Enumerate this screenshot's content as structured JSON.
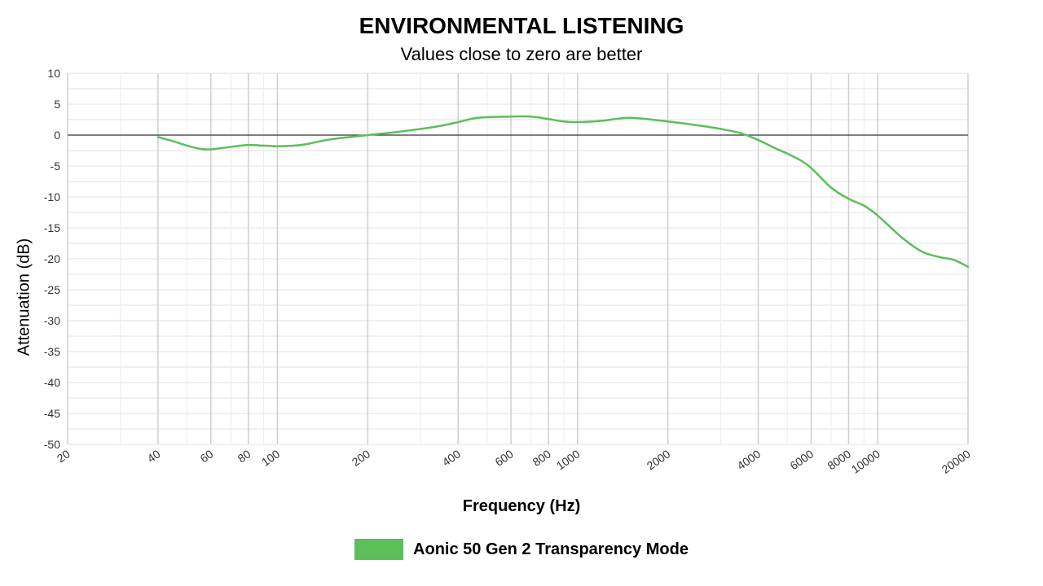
{
  "chart_data": {
    "type": "line",
    "title": "ENVIRONMENTAL LISTENING",
    "subtitle": "Values close to zero are better",
    "xlabel": "Frequency (Hz)",
    "ylabel": "Attenuation (dB)",
    "xscale": "log",
    "xlim": [
      20,
      20000
    ],
    "ylim": [
      -50,
      10
    ],
    "xticks": [
      20,
      40,
      60,
      80,
      100,
      200,
      400,
      600,
      800,
      1000,
      2000,
      4000,
      6000,
      8000,
      10000,
      20000
    ],
    "yticks": [
      10,
      5,
      0,
      -5,
      -10,
      -15,
      -20,
      -25,
      -30,
      -35,
      -40,
      -45,
      -50
    ],
    "grid": true,
    "zero_line": true,
    "legend_position": "bottom",
    "series": [
      {
        "name": "Aonic 50 Gen 2 Transparency Mode",
        "color": "#5cbf5a",
        "x": [
          40,
          45,
          50,
          55,
          60,
          70,
          80,
          90,
          100,
          120,
          150,
          200,
          250,
          300,
          350,
          400,
          450,
          500,
          600,
          700,
          800,
          900,
          1000,
          1200,
          1500,
          2000,
          2500,
          3000,
          3500,
          4000,
          4500,
          5000,
          5500,
          6000,
          7000,
          8000,
          9000,
          10000,
          12000,
          14000,
          16000,
          18000,
          20000
        ],
        "y": [
          -0.3,
          -1.0,
          -1.7,
          -2.2,
          -2.3,
          -1.9,
          -1.6,
          -1.7,
          -1.8,
          -1.6,
          -0.7,
          0.0,
          0.5,
          1.0,
          1.5,
          2.1,
          2.7,
          2.9,
          3.0,
          3.0,
          2.6,
          2.2,
          2.1,
          2.3,
          2.8,
          2.2,
          1.6,
          1.0,
          0.3,
          -0.8,
          -2.0,
          -3.0,
          -4.0,
          -5.3,
          -8.5,
          -10.3,
          -11.4,
          -13.0,
          -16.5,
          -18.8,
          -19.7,
          -20.2,
          -21.3
        ]
      }
    ]
  }
}
